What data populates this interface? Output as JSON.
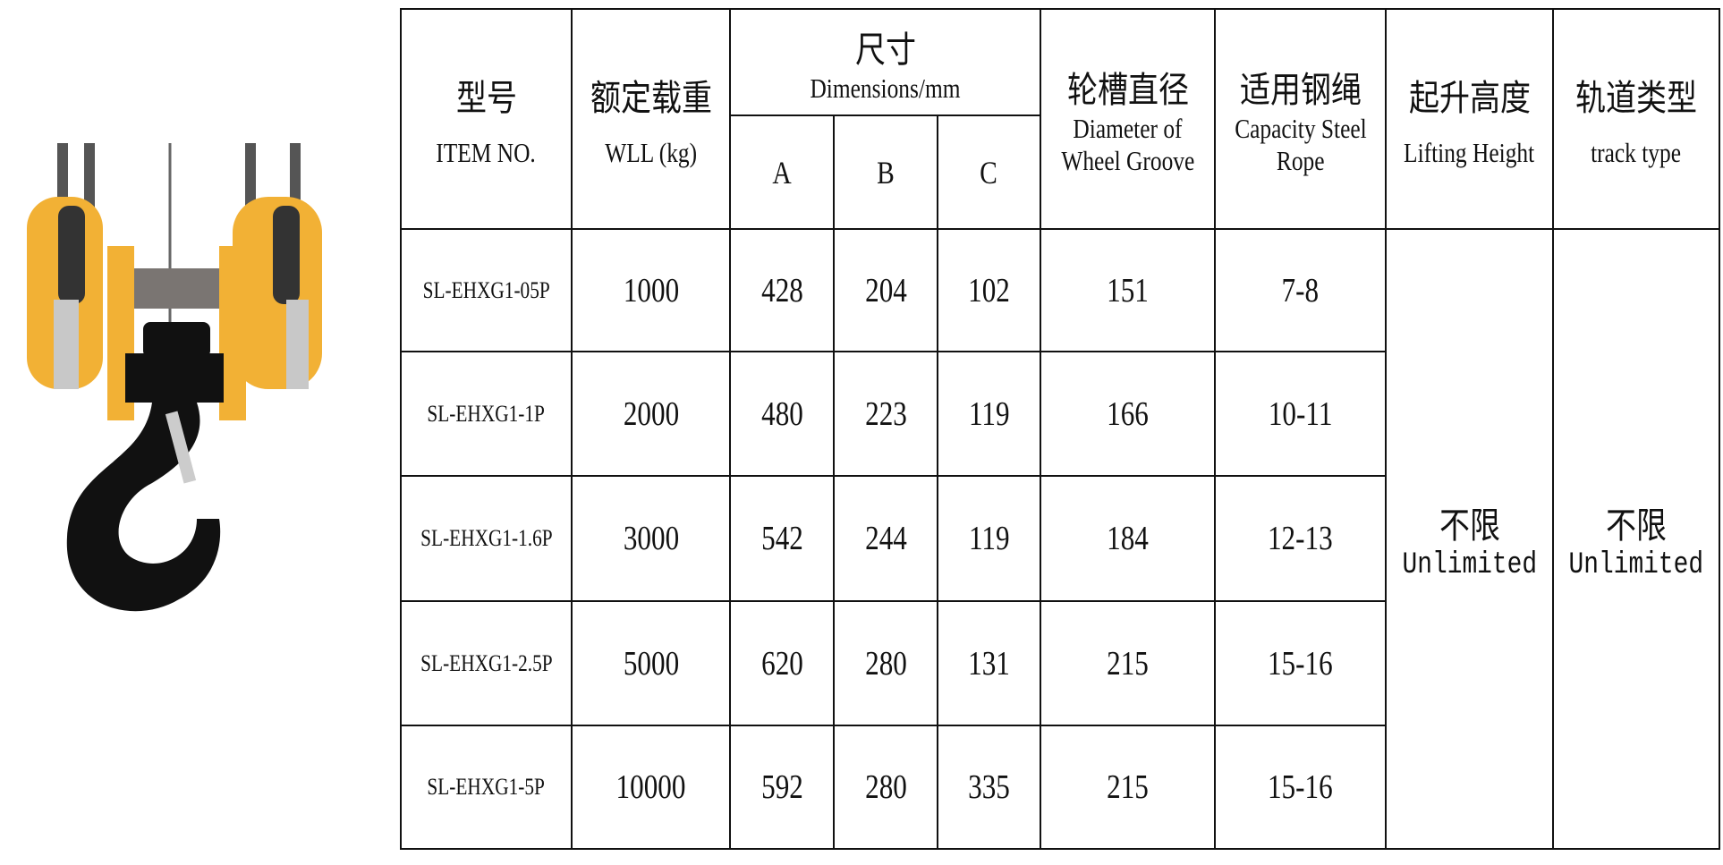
{
  "product_image": {
    "description_icon": "hook-block-image"
  },
  "headers": {
    "model": {
      "zh": "型号",
      "en": "ITEM NO."
    },
    "wll": {
      "zh": "额定载重",
      "en": "WLL (kg)"
    },
    "dimensions": {
      "zh": "尺寸",
      "en": "Dimensions/mm",
      "sub": [
        "A",
        "B",
        "C"
      ]
    },
    "groove": {
      "zh": "轮槽直径",
      "en1": "Diameter of",
      "en2": "Wheel Groove"
    },
    "rope": {
      "zh": "适用钢绳",
      "en1": "Capacity Steel",
      "en2": "Rope"
    },
    "lift": {
      "zh": "起升高度",
      "en": "Lifting Height"
    },
    "track": {
      "zh": "轨道类型",
      "en": "track type"
    }
  },
  "rows": [
    {
      "item": "SL-EHXG1-05P",
      "wll": "1000",
      "a": "428",
      "b": "204",
      "c": "102",
      "groove": "151",
      "rope": "7-8"
    },
    {
      "item": "SL-EHXG1-1P",
      "wll": "2000",
      "a": "480",
      "b": "223",
      "c": "119",
      "groove": "166",
      "rope": "10-11"
    },
    {
      "item": "SL-EHXG1-1.6P",
      "wll": "3000",
      "a": "542",
      "b": "244",
      "c": "119",
      "groove": "184",
      "rope": "12-13"
    },
    {
      "item": "SL-EHXG1-2.5P",
      "wll": "5000",
      "a": "620",
      "b": "280",
      "c": "131",
      "groove": "215",
      "rope": "15-16"
    },
    {
      "item": "SL-EHXG1-5P",
      "wll": "10000",
      "a": "592",
      "b": "280",
      "c": "335",
      "groove": "215",
      "rope": "15-16"
    }
  ],
  "lift_value": {
    "zh": "不限",
    "en": "Unlimited"
  },
  "track_value": {
    "zh": "不限",
    "en": "Unlimited"
  }
}
